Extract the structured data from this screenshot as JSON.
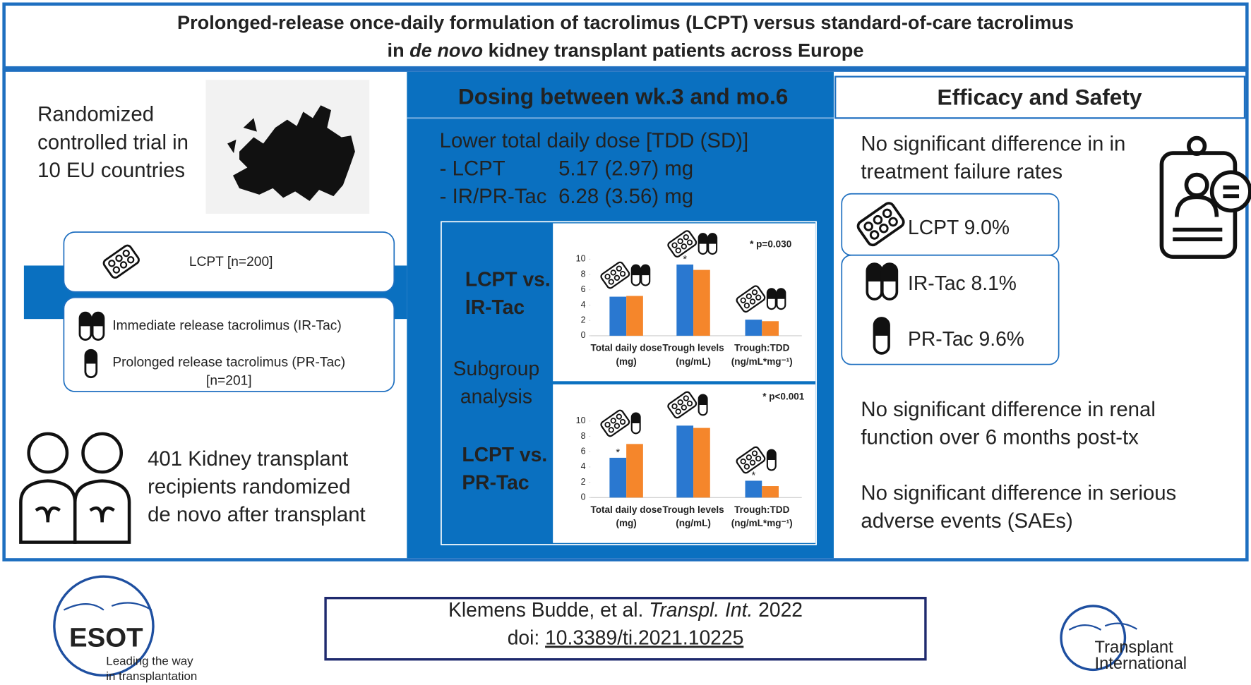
{
  "header": {
    "title_line1": "Prolonged-release once-daily formulation of tacrolimus (LCPT) versus standard-of-care tacrolimus",
    "title_line2": [
      "in ",
      "de novo",
      " kidney transplant patients across Europe"
    ]
  },
  "left": {
    "trial_lines": [
      "Randomized",
      "controlled trial in",
      "10 EU countries"
    ],
    "lcpt_arm": "LCPT [n=200]",
    "ir_tac_arm": "Immediate release tacrolimus (IR-Tac)",
    "pr_tac_arm": [
      "Prolonged release tacrolimus (PR-Tac)",
      "[n=201]"
    ],
    "patients_lines": [
      "401 Kidney transplant",
      "recipients randomized",
      "de novo after transplant"
    ]
  },
  "middle": {
    "heading": "Dosing between wk.3 and mo.6",
    "tdd_heading": "Lower total daily dose [TDD (SD)]",
    "doses": [
      {
        "label": "- LCPT",
        "value": "5.17 (2.97) mg"
      },
      {
        "label": "- IR/PR-Tac",
        "value": "6.28 (3.56) mg"
      }
    ],
    "comparison1": [
      "LCPT vs.",
      "IR-Tac"
    ],
    "subgroup": [
      "Subgroup",
      "analysis"
    ],
    "comparison2": [
      "LCPT vs.",
      "PR-Tac"
    ]
  },
  "chart_data": [
    {
      "type": "bar",
      "categories": [
        [
          "Total daily dose",
          "(mg)"
        ],
        [
          "Trough levels",
          "(ng/mL)"
        ],
        [
          "Trough:TDD",
          "(ng/mL*mg⁻¹)"
        ]
      ],
      "ylim": [
        0,
        10
      ],
      "yticks": [
        0,
        2,
        4,
        6,
        8,
        10
      ],
      "annotation": "* p=0.030",
      "series": [
        {
          "color": "#2a78d0",
          "values": [
            5.1,
            9.3,
            2.1
          ],
          "markers": [
            null,
            "*",
            null
          ]
        },
        {
          "color": "#f5862b",
          "values": [
            5.2,
            8.6,
            1.9
          ]
        }
      ]
    },
    {
      "type": "bar",
      "categories": [
        [
          "Total daily dose",
          "(mg)"
        ],
        [
          "Trough levels",
          "(ng/mL)"
        ],
        [
          "Trough:TDD",
          "(ng/mL*mg⁻¹)"
        ]
      ],
      "ylim": [
        0,
        10
      ],
      "yticks": [
        0,
        2,
        4,
        6,
        8,
        10
      ],
      "annotation": "* p<0.001",
      "series": [
        {
          "color": "#2a78d0",
          "values": [
            5.2,
            9.4,
            2.2
          ],
          "markers": [
            "*",
            null,
            "*"
          ]
        },
        {
          "color": "#f5862b",
          "values": [
            7.0,
            9.1,
            1.5
          ]
        }
      ]
    }
  ],
  "right": {
    "heading": "Efficacy and Safety",
    "failure_lines": [
      "No significant difference in in",
      "treatment failure rates"
    ],
    "rates": [
      "LCPT 9.0%",
      "IR-Tac 8.1%",
      "PR-Tac 9.6%"
    ],
    "renal_lines": [
      "No significant difference in renal",
      "function over 6 months post-tx"
    ],
    "sae_lines": [
      "No significant difference in serious",
      "adverse events (SAEs)"
    ]
  },
  "footer": {
    "citation": [
      "Klemens Budde, et al. ",
      "Transpl. Int.",
      " 2022"
    ],
    "doi_prefix": "doi: ",
    "doi": "10.3389/ti.2021.10225",
    "esot_logo": "ESOT",
    "esot_tagline": [
      "Leading the way",
      "in transplantation"
    ],
    "journal_logo": [
      "Transplant",
      "International"
    ]
  }
}
